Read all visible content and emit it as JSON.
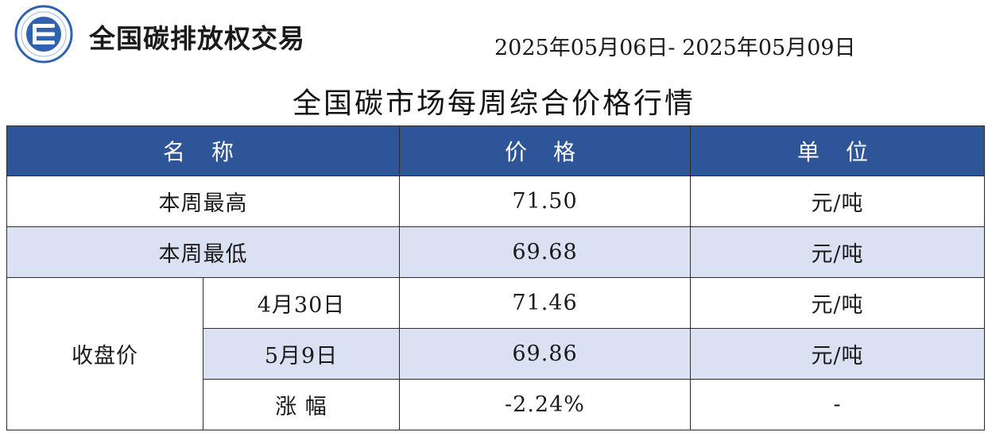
{
  "header": {
    "brand_name": "全国碳排放权交易",
    "date_range": "2025年05月06日- 2025年05月09日"
  },
  "report_title": "全国碳市场每周综合价格行情",
  "table": {
    "columns": [
      "名 称",
      "价 格",
      "单 位"
    ],
    "rows": [
      {
        "name": "本周最高",
        "price": "71.50",
        "unit": "元/吨"
      },
      {
        "name": "本周最低",
        "price": "69.68",
        "unit": "元/吨"
      }
    ],
    "closing": {
      "label": "收盘价",
      "rows": [
        {
          "name": "4月30日",
          "price": "71.46",
          "unit": "元/吨"
        },
        {
          "name": "5月9日",
          "price": "69.86",
          "unit": "元/吨"
        },
        {
          "name": "涨 幅",
          "price": "-2.24%",
          "unit": "-"
        }
      ]
    }
  },
  "colors": {
    "header_bg": "#2e5597",
    "row_shade": "#dae1f3",
    "logo_blue": "#2f63b0"
  }
}
